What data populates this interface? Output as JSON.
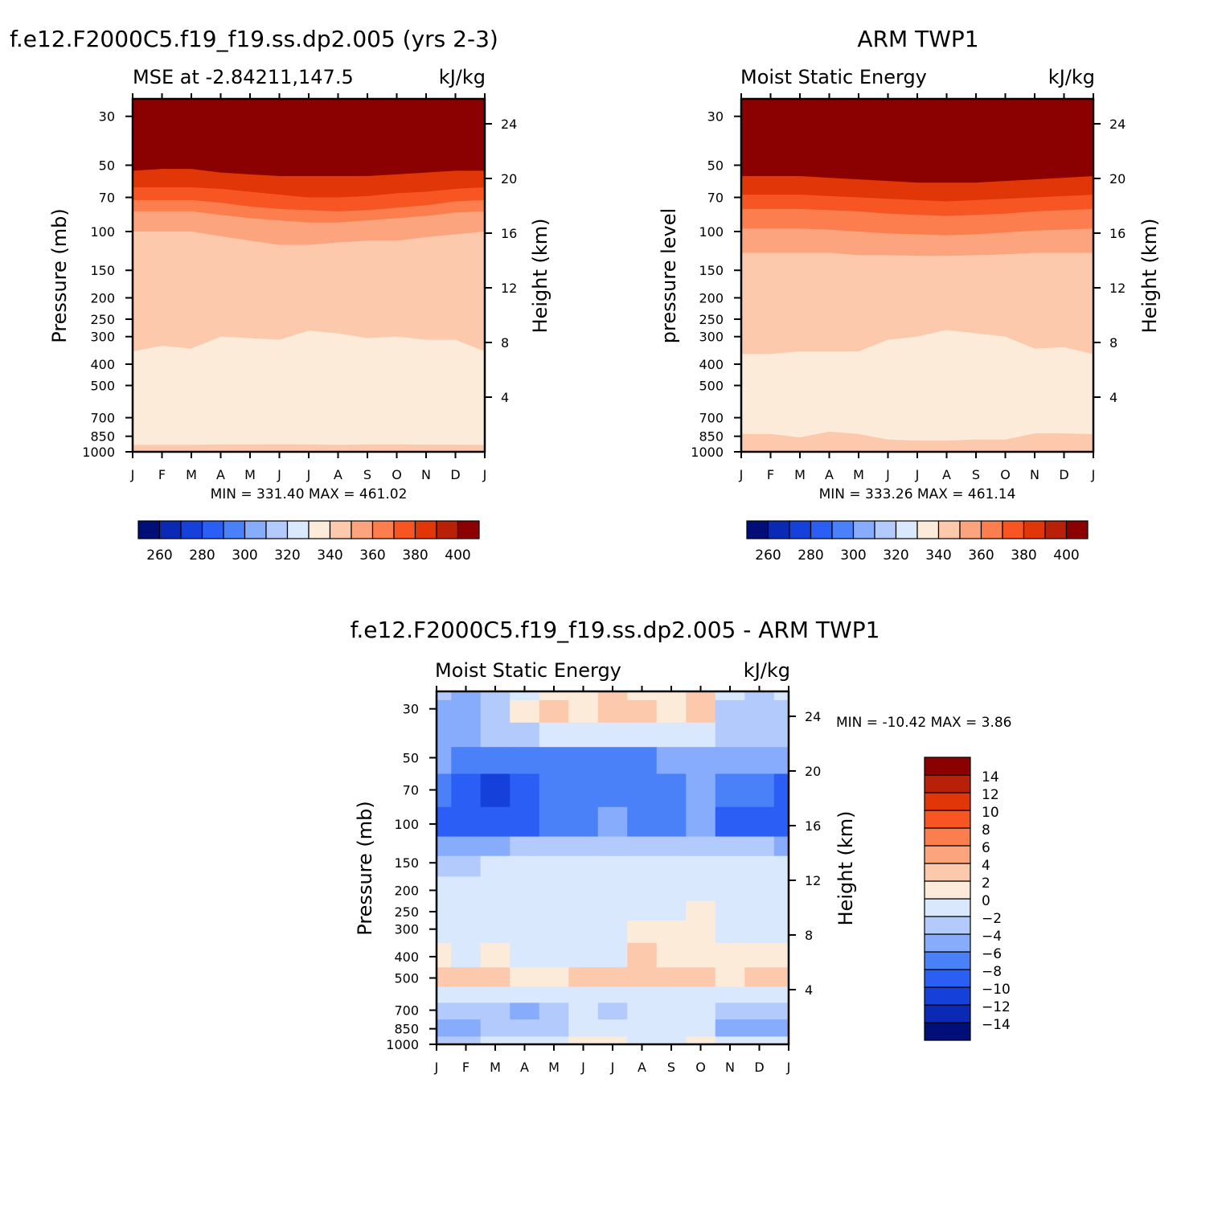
{
  "levels": {
    "mse": [
      260,
      270,
      280,
      290,
      300,
      310,
      320,
      330,
      340,
      350,
      360,
      370,
      380,
      390,
      400
    ],
    "diff": [
      -14,
      -12,
      -10,
      -8,
      -6,
      -4,
      -2,
      0,
      2,
      4,
      6,
      8,
      10,
      12,
      14
    ]
  },
  "colors": {
    "mse_bins": [
      "#000f78",
      "#0a2ab5",
      "#1540d9",
      "#2a5ef5",
      "#4a80f8",
      "#86acfb",
      "#b3cafc",
      "#d9e8fc",
      "#fdebd9",
      "#fdc9ad",
      "#fca47e",
      "#fc7d4d",
      "#f75521",
      "#e03608",
      "#b82107",
      "#8b0000"
    ],
    "diff_bins": [
      "#000f78",
      "#0a2ab5",
      "#1540d9",
      "#2a5ef5",
      "#4a80f8",
      "#86acfb",
      "#b3cafc",
      "#d9e8fc",
      "#fdebd9",
      "#fdc9ad",
      "#fca47e",
      "#fc7d4d",
      "#f75521",
      "#e03608",
      "#b82107",
      "#8b0000"
    ]
  },
  "chart_data": [
    {
      "type": "heatmap",
      "title": "f.e12.F2000C5.f19_f19.ss.dp2.005 (yrs 2-3)",
      "subtitle_left": "MSE at -2.84211,147.5",
      "subtitle_right": "kJ/kg",
      "ylabel": "Pressure (mb)",
      "ylabel_right": "Height (km)",
      "x_ticks": [
        "J",
        "F",
        "M",
        "A",
        "M",
        "J",
        "J",
        "A",
        "S",
        "O",
        "N",
        "D",
        "J"
      ],
      "y_ticks": [
        30,
        50,
        70,
        100,
        150,
        200,
        250,
        300,
        400,
        500,
        700,
        850,
        1000
      ],
      "y_right_ticks": [
        24,
        20,
        16,
        12,
        8,
        4
      ],
      "ylim": [
        1000,
        25
      ],
      "y_scale": "log",
      "minmax": "MIN = 331.40  MAX = 461.02",
      "months": [
        0,
        1,
        2,
        3,
        4,
        5,
        6,
        7,
        8,
        9,
        10,
        11,
        12
      ],
      "contours": [
        {
          "level": 340,
          "p": [
            930,
            930,
            930,
            925,
            925,
            923,
            925,
            930,
            925,
            925,
            928,
            928,
            930
          ]
        },
        {
          "level": 350,
          "p": [
            350,
            330,
            340,
            300,
            305,
            310,
            282,
            290,
            305,
            300,
            310,
            310,
            350
          ]
        },
        {
          "level": 360,
          "p": [
            100,
            100,
            100,
            105,
            110,
            115,
            115,
            112,
            110,
            110,
            106,
            103,
            100
          ]
        },
        {
          "level": 370,
          "p": [
            81,
            81,
            81,
            84,
            87,
            89,
            91,
            91,
            89,
            87,
            85,
            82,
            81
          ]
        },
        {
          "level": 380,
          "p": [
            72,
            72,
            72,
            74,
            77,
            79,
            80,
            81,
            80,
            78,
            76,
            73,
            72
          ]
        },
        {
          "level": 390,
          "p": [
            63,
            63,
            63,
            64,
            66,
            68,
            70,
            70,
            69,
            67,
            66,
            64,
            63
          ]
        },
        {
          "level": 400,
          "p": [
            53,
            52,
            52,
            54,
            55,
            56,
            56,
            56,
            56,
            55,
            54,
            53,
            53
          ]
        }
      ]
    },
    {
      "type": "heatmap",
      "title": "ARM TWP1",
      "subtitle_left": "Moist Static Energy",
      "subtitle_right": "kJ/kg",
      "ylabel": "pressure level",
      "ylabel_right": "Height (km)",
      "x_ticks": [
        "J",
        "F",
        "M",
        "A",
        "M",
        "J",
        "J",
        "A",
        "S",
        "O",
        "N",
        "D",
        "J"
      ],
      "y_ticks": [
        30,
        50,
        70,
        100,
        150,
        200,
        250,
        300,
        400,
        500,
        700,
        850,
        1000
      ],
      "y_right_ticks": [
        24,
        20,
        16,
        12,
        8,
        4
      ],
      "ylim": [
        1000,
        25
      ],
      "y_scale": "log",
      "minmax": "MIN = 333.26  MAX = 461.14",
      "months": [
        0,
        1,
        2,
        3,
        4,
        5,
        6,
        7,
        8,
        9,
        10,
        11,
        12
      ],
      "contours": [
        {
          "level": 340,
          "p": [
            830,
            830,
            860,
            810,
            830,
            880,
            890,
            890,
            880,
            880,
            825,
            825,
            830
          ]
        },
        {
          "level": 350,
          "p": [
            360,
            360,
            350,
            350,
            350,
            310,
            300,
            280,
            290,
            300,
            340,
            335,
            360
          ]
        },
        {
          "level": 360,
          "p": [
            125,
            125,
            125,
            125,
            128,
            128,
            129,
            129,
            128,
            127,
            125,
            125,
            125
          ]
        },
        {
          "level": 370,
          "p": [
            97,
            97,
            97,
            98,
            100,
            102,
            103,
            104,
            103,
            101,
            99,
            98,
            97
          ]
        },
        {
          "level": 380,
          "p": [
            79,
            79,
            79,
            80,
            81,
            83,
            84,
            85,
            84,
            83,
            81,
            80,
            79
          ]
        },
        {
          "level": 390,
          "p": [
            68,
            68,
            68,
            69,
            70,
            71,
            72,
            73,
            72,
            71,
            70,
            69,
            68
          ]
        },
        {
          "level": 400,
          "p": [
            56,
            56,
            56,
            57,
            58,
            59,
            60,
            60,
            60,
            59,
            58,
            57,
            56
          ]
        }
      ]
    },
    {
      "type": "heatmap",
      "title": "f.e12.F2000C5.f19_f19.ss.dp2.005 - ARM TWP1",
      "subtitle_left": "Moist Static Energy",
      "subtitle_right": "kJ/kg",
      "ylabel": "Pressure (mb)",
      "ylabel_right": "Height (km)",
      "x_ticks": [
        "J",
        "F",
        "M",
        "A",
        "M",
        "J",
        "J",
        "A",
        "S",
        "O",
        "N",
        "D",
        "J"
      ],
      "y_ticks": [
        30,
        50,
        70,
        100,
        150,
        200,
        250,
        300,
        400,
        500,
        700,
        850,
        1000
      ],
      "y_right_ticks": [
        24,
        20,
        16,
        12,
        8,
        4
      ],
      "ylim": [
        1000,
        25
      ],
      "y_scale": "log",
      "minmax": "MIN = -10.42  MAX =    3.86",
      "months": [
        0,
        1,
        2,
        3,
        4,
        5,
        6,
        7,
        8,
        9,
        10,
        11,
        12
      ],
      "pressures": [
        25,
        30,
        40,
        50,
        70,
        100,
        130,
        150,
        200,
        250,
        300,
        400,
        500,
        600,
        700,
        850,
        1000
      ],
      "values": [
        [
          -3,
          -5,
          -4,
          -1,
          1,
          1,
          2,
          1,
          1,
          2,
          -2,
          -3,
          -2
        ],
        [
          -5,
          -5,
          -3,
          0,
          2,
          1,
          3,
          2,
          1,
          2,
          -3,
          -3,
          -3
        ],
        [
          -5,
          -5,
          -4,
          -3,
          -2,
          -1,
          -1,
          -1,
          -1,
          -2,
          -4,
          -4,
          -4
        ],
        [
          -6,
          -7,
          -8,
          -7,
          -8,
          -7,
          -7,
          -7,
          -6,
          -5,
          -6,
          -6,
          -6
        ],
        [
          -8,
          -10,
          -11,
          -9,
          -8,
          -8,
          -7,
          -8,
          -7,
          -5,
          -7,
          -8,
          -9
        ],
        [
          -9,
          -9,
          -9,
          -9,
          -8,
          -7,
          -6,
          -8,
          -8,
          -5,
          -9,
          -9,
          -9
        ],
        [
          -5,
          -5,
          -5,
          -4,
          -4,
          -4,
          -3,
          -4,
          -4,
          -3,
          -4,
          -4,
          -5
        ],
        [
          -3,
          -3,
          -2,
          -2,
          -2,
          -1,
          -1,
          -2,
          -2,
          -1,
          -2,
          -2,
          -2
        ],
        [
          -1,
          -1,
          -1,
          -1,
          -1,
          -1,
          -1,
          -1,
          -1,
          -1,
          -1,
          -1,
          -1
        ],
        [
          -1,
          -1,
          -1,
          -1,
          -1,
          -1,
          -1,
          -1,
          -1,
          1,
          -1,
          -1,
          -1
        ],
        [
          -1,
          -1,
          -1,
          -1,
          -1,
          -1,
          -1,
          1,
          1,
          1,
          -1,
          -1,
          -1
        ],
        [
          1,
          -1,
          1,
          -1,
          -1,
          -1,
          -1,
          2,
          1,
          1,
          1,
          1,
          1
        ],
        [
          3,
          3,
          3,
          1,
          1,
          3,
          3,
          3,
          3,
          3,
          1,
          3,
          3
        ],
        [
          -1,
          -1,
          -1,
          -1,
          -1,
          -1,
          -1,
          -1,
          -1,
          -1,
          -1,
          -1,
          -1
        ],
        [
          -3,
          -3,
          -3,
          -5,
          -4,
          -2,
          -3,
          -2,
          -2,
          -2,
          -3,
          -3,
          -3
        ],
        [
          -5,
          -5,
          -3,
          -3,
          -3,
          -1,
          -2,
          -1,
          -1,
          -2,
          -5,
          -5,
          -5
        ],
        [
          -3,
          -3,
          -1,
          -1,
          -1,
          1,
          1,
          -1,
          -1,
          1,
          -1,
          -1,
          -1
        ]
      ]
    }
  ]
}
